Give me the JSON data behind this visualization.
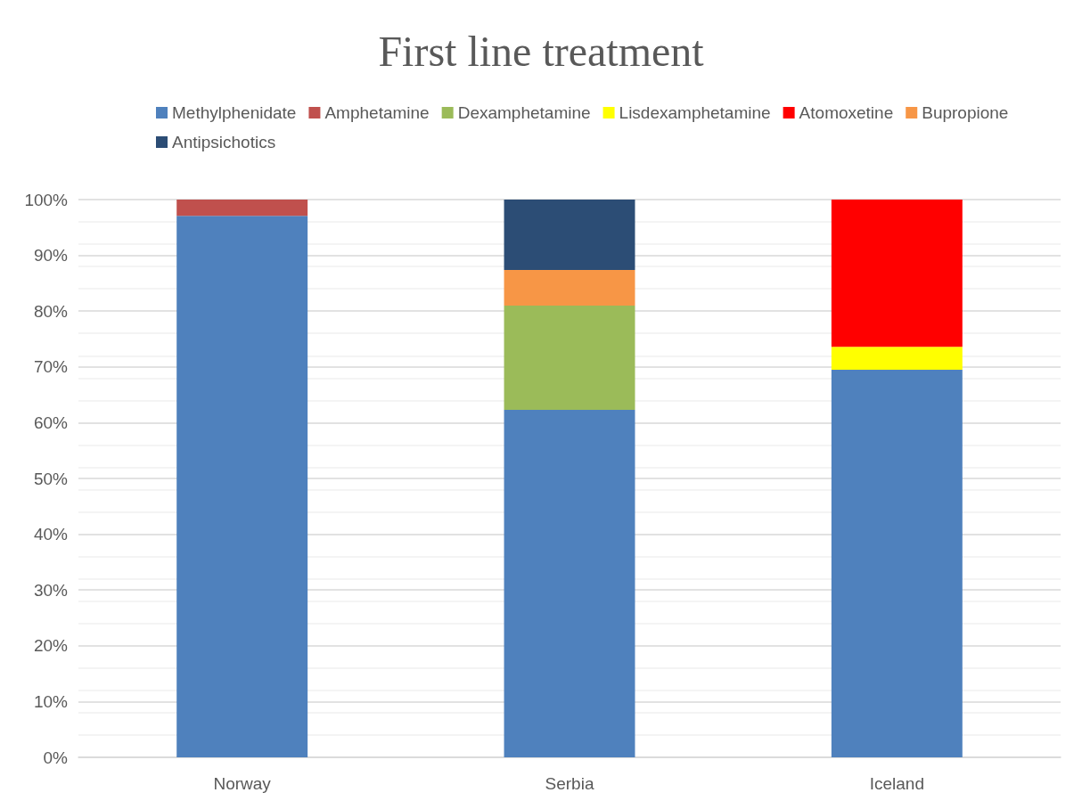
{
  "chart_data": {
    "type": "bar",
    "title": "First line treatment",
    "stacked": true,
    "categories": [
      "Norway",
      "Serbia",
      "Iceland"
    ],
    "series": [
      {
        "name": "Methylphenidate",
        "color": "#4f81bd",
        "values": [
          97.1,
          62.3,
          69.5
        ]
      },
      {
        "name": "Amphetamine",
        "color": "#c0504d",
        "values": [
          2.9,
          null,
          null
        ]
      },
      {
        "name": "Dexamphetamine",
        "color": "#9bbb59",
        "values": [
          null,
          18.7,
          null
        ]
      },
      {
        "name": "Lisdexamphetamine",
        "color": "#ffff00",
        "values": [
          null,
          null,
          4.1
        ]
      },
      {
        "name": "Atomoxetine",
        "color": "#ff0000",
        "values": [
          null,
          null,
          26.4
        ]
      },
      {
        "name": "Bupropione",
        "color": "#f79646",
        "values": [
          null,
          6.4,
          null
        ]
      },
      {
        "name": "Antipsichotics",
        "color": "#2c4d75",
        "values": [
          null,
          12.6,
          null
        ]
      }
    ],
    "ylim": [
      0,
      100
    ],
    "yticks": [
      {
        "value": 0,
        "label": "0%"
      },
      {
        "value": 10,
        "label": "10%"
      },
      {
        "value": 20,
        "label": "20%"
      },
      {
        "value": 30,
        "label": "30%"
      },
      {
        "value": 40,
        "label": "40%"
      },
      {
        "value": 50,
        "label": "50%"
      },
      {
        "value": 60,
        "label": "60%"
      },
      {
        "value": 70,
        "label": "70%"
      },
      {
        "value": 80,
        "label": "80%"
      },
      {
        "value": 90,
        "label": "90%"
      },
      {
        "value": 100,
        "label": "100%"
      }
    ],
    "grid": true,
    "legend": "top"
  }
}
